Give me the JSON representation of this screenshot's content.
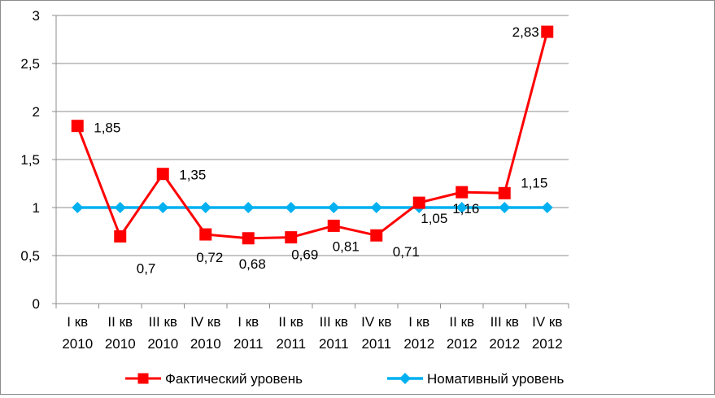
{
  "chart_data": {
    "type": "line",
    "title": "",
    "xlabel": "",
    "ylabel": "",
    "ylim": [
      0,
      3
    ],
    "yticks": [
      "0",
      "0,5",
      "1",
      "1,5",
      "2",
      "2,5",
      "3"
    ],
    "ytick_values": [
      0,
      0.5,
      1,
      1.5,
      2,
      2.5,
      3
    ],
    "grid": true,
    "legend_position": "bottom",
    "categories": [
      [
        "I кв",
        "2010"
      ],
      [
        "II кв",
        "2010"
      ],
      [
        "III кв",
        "2010"
      ],
      [
        "IV кв",
        "2010"
      ],
      [
        "I кв",
        "2011"
      ],
      [
        "II кв",
        "2011"
      ],
      [
        "III кв",
        "2011"
      ],
      [
        "IV кв",
        "2011"
      ],
      [
        "I кв",
        "2012"
      ],
      [
        "II кв",
        "2012"
      ],
      [
        "III кв",
        "2012"
      ],
      [
        "IV кв",
        "2012"
      ]
    ],
    "series": [
      {
        "name": "Фактический уровень",
        "color": "#ff0000",
        "marker": "square",
        "values": [
          1.85,
          0.7,
          1.35,
          0.72,
          0.68,
          0.69,
          0.81,
          0.71,
          1.05,
          1.16,
          1.15,
          2.83
        ],
        "labels": [
          "1,85",
          "0,7",
          "1,35",
          "0,72",
          "0,68",
          "0,69",
          "0,81",
          "0,71",
          "1,05",
          "1,16",
          "1,15",
          "2,83"
        ]
      },
      {
        "name": "Номативный уровень",
        "color": "#00b0f0",
        "marker": "diamond",
        "values": [
          1,
          1,
          1,
          1,
          1,
          1,
          1,
          1,
          1,
          1,
          1,
          1
        ]
      }
    ]
  }
}
